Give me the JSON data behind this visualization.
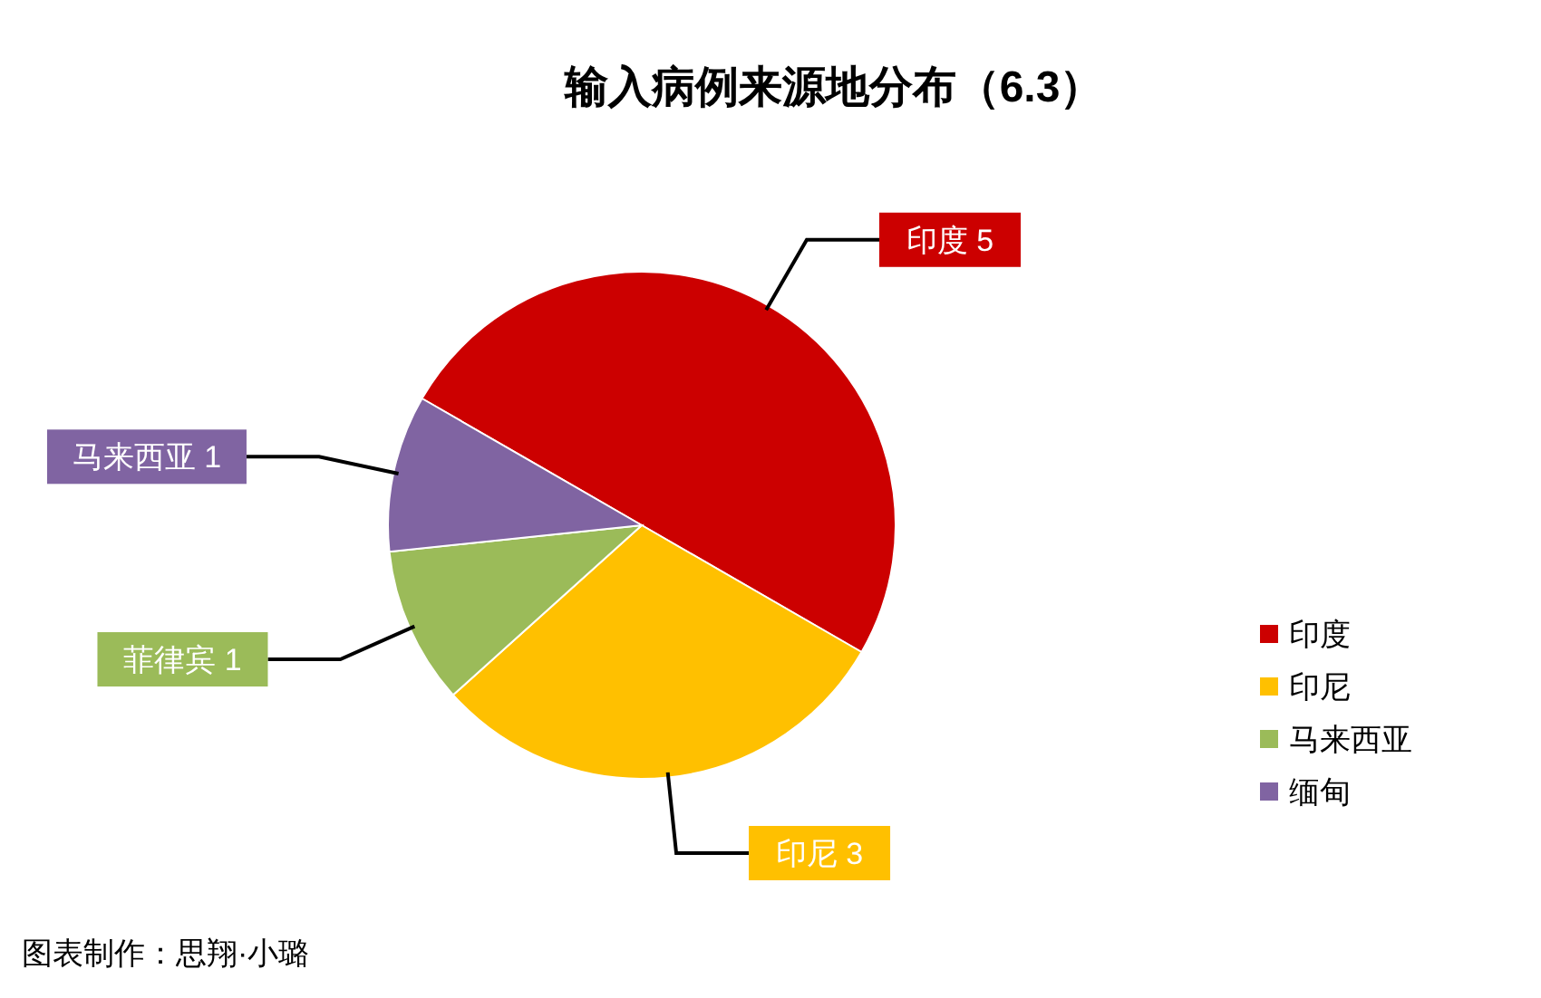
{
  "chart_data": {
    "type": "pie",
    "title": "输入病例来源地分布（6.3）",
    "categories": [
      "印度",
      "印尼",
      "马来西亚",
      "缅甸"
    ],
    "values": [
      5,
      3,
      1,
      1
    ],
    "colors": [
      "#cc0000",
      "#ffc000",
      "#9bbb59",
      "#8064a2"
    ],
    "value_labels": [
      "印度 5",
      "印尼 3",
      "菲律宾 1",
      "马来西亚 1"
    ],
    "legend": "right",
    "annotations": [
      "图表制作：思翔·小璐"
    ]
  }
}
